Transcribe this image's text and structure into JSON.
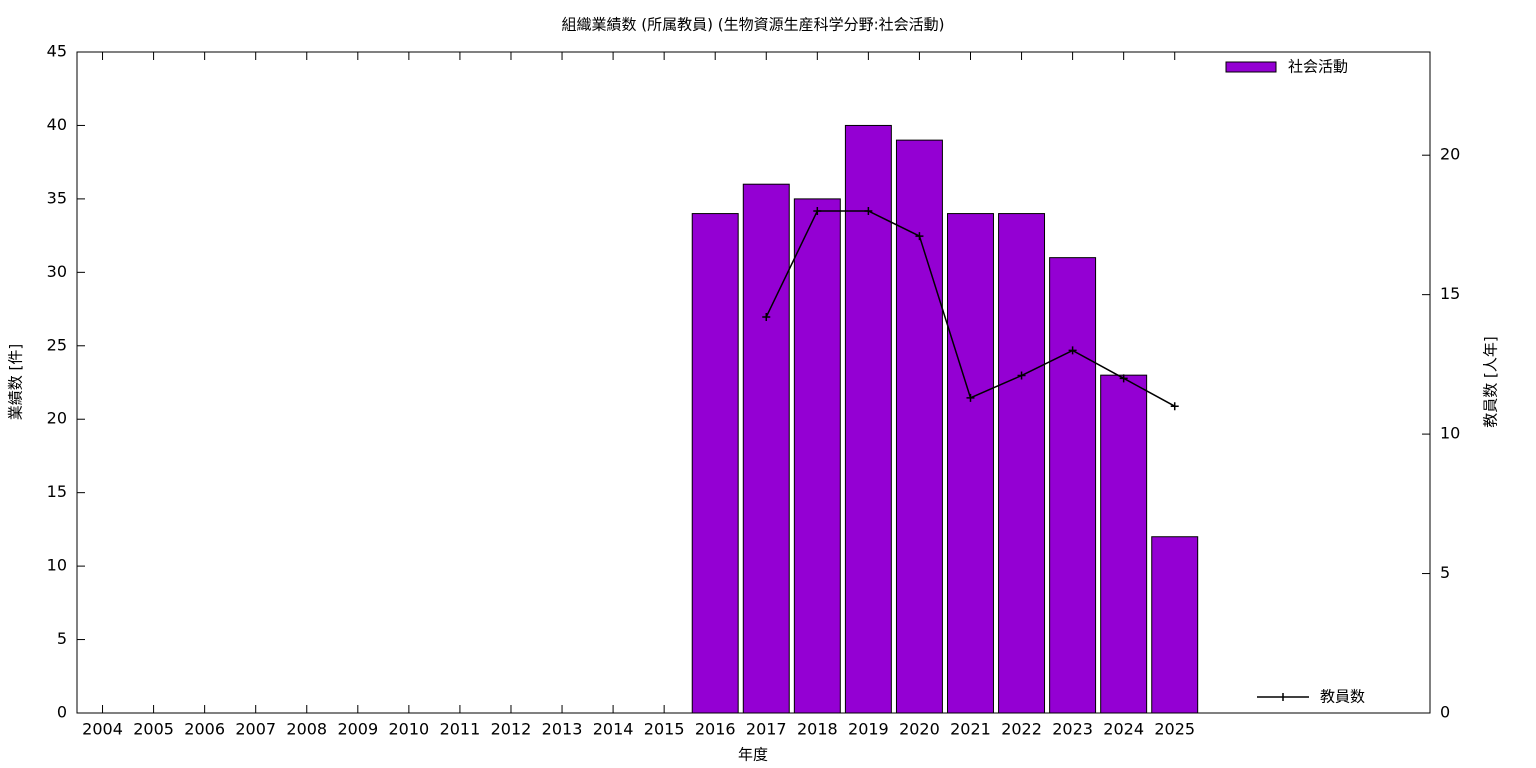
{
  "chart_data": {
    "type": "bar",
    "title": "組織業績数 (所属教員) (生物資源生産科学分野:社会活動)",
    "xlabel": "年度",
    "ylabel": "業績数 [件]",
    "y2label": "教員数 [人年]",
    "categories": [
      "2004",
      "2005",
      "2006",
      "2007",
      "2008",
      "2009",
      "2010",
      "2011",
      "2012",
      "2013",
      "2014",
      "2015",
      "2016",
      "2017",
      "2018",
      "2019",
      "2020",
      "2021",
      "2022",
      "2023",
      "2024",
      "2025"
    ],
    "series": [
      {
        "name": "社会活動",
        "type": "bar",
        "color": "#9400d3",
        "legend": "top-right",
        "values": [
          null,
          null,
          null,
          null,
          null,
          null,
          null,
          null,
          null,
          null,
          null,
          null,
          34,
          36,
          35,
          40,
          39,
          34,
          34,
          31,
          23,
          12
        ]
      },
      {
        "name": "教員数",
        "type": "line",
        "axis": "y2",
        "color": "#000000",
        "legend": "bottom-right",
        "values": [
          null,
          null,
          null,
          null,
          null,
          null,
          null,
          null,
          null,
          null,
          null,
          null,
          null,
          14.2,
          18.0,
          18.0,
          17.1,
          11.3,
          12.1,
          13.0,
          12.0,
          11.0
        ]
      }
    ],
    "ylim": [
      0,
      45
    ],
    "yticks": [
      0,
      5,
      10,
      15,
      20,
      25,
      30,
      35,
      40,
      45
    ],
    "y2lim": [
      0,
      23.7
    ],
    "y2ticks": [
      0,
      5,
      10,
      15,
      20
    ],
    "grid": false
  }
}
